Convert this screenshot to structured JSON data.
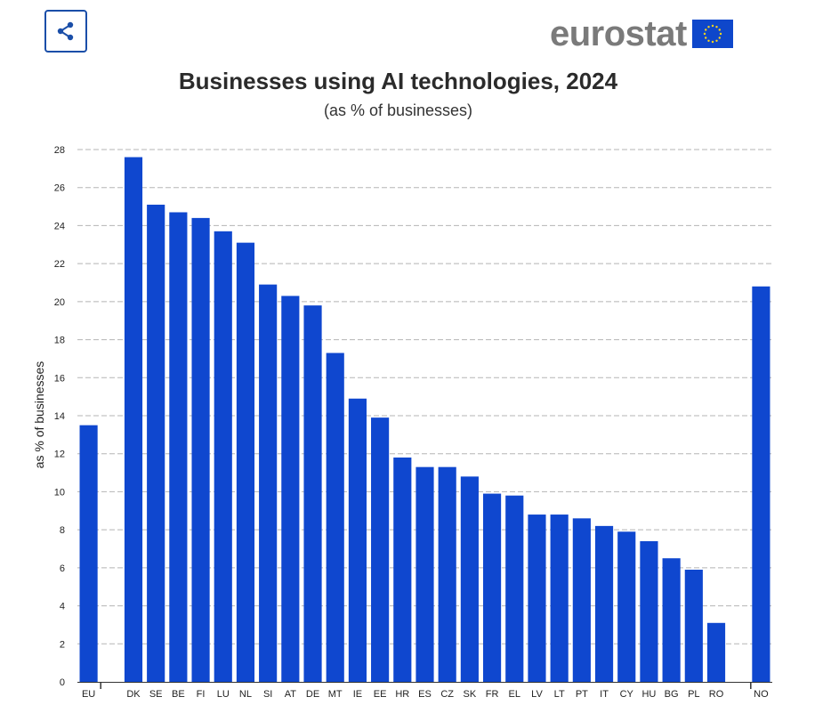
{
  "header": {
    "share_icon": "share-icon",
    "logo_text": "eurostat",
    "logo_flag_icon": "eu-flag-icon",
    "colors": {
      "share_border": "#1a4ea8",
      "logo_text": "#7a7a7a",
      "flag": "#0e47cb",
      "stars": "#ffd617"
    }
  },
  "chart_data": {
    "type": "bar",
    "title": "Businesses using AI technologies, 2024",
    "subtitle": "(as % of businesses)",
    "ylabel": "as % of businesses",
    "xlabel": "",
    "ylim": [
      0,
      28
    ],
    "yticks": [
      0,
      2,
      4,
      6,
      8,
      10,
      12,
      14,
      16,
      18,
      20,
      22,
      24,
      26,
      28
    ],
    "grid": true,
    "bar_color": "#0f47cf",
    "categories": [
      "EU",
      "DK",
      "SE",
      "BE",
      "FI",
      "LU",
      "NL",
      "SI",
      "AT",
      "DE",
      "MT",
      "IE",
      "EE",
      "HR",
      "ES",
      "CZ",
      "SK",
      "FR",
      "EL",
      "LV",
      "LT",
      "PT",
      "IT",
      "CY",
      "HU",
      "BG",
      "PL",
      "RO",
      "NO"
    ],
    "values": [
      13.5,
      27.6,
      25.1,
      24.7,
      24.4,
      23.7,
      23.1,
      20.9,
      20.3,
      19.8,
      17.3,
      14.9,
      13.9,
      11.8,
      11.3,
      11.3,
      10.8,
      9.9,
      9.8,
      8.8,
      8.8,
      8.6,
      8.2,
      7.9,
      7.4,
      6.5,
      5.9,
      3.1,
      20.8
    ]
  }
}
